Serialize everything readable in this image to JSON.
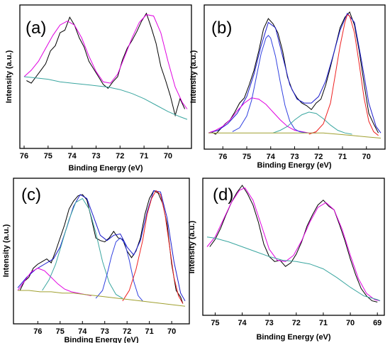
{
  "chart_data": [
    {
      "type": "line",
      "panel_label": "(a)",
      "xlabel": "Binding Energy (eV)",
      "ylabel": "Intensity (a.u.)",
      "xlim": [
        76,
        69.2
      ],
      "ylim": [
        0,
        1
      ],
      "x_reversed": true,
      "xticks": [
        76,
        75,
        74,
        73,
        72,
        71,
        70
      ],
      "grid": false,
      "series": [
        {
          "role": "raw",
          "color": "#000000",
          "x": [
            75.9,
            75.7,
            75.5,
            75.3,
            75.1,
            74.9,
            74.7,
            74.5,
            74.3,
            74.1,
            73.9,
            73.7,
            73.5,
            73.3,
            73.1,
            72.9,
            72.7,
            72.5,
            72.3,
            72.1,
            71.9,
            71.7,
            71.5,
            71.3,
            71.1,
            70.9,
            70.7,
            70.5,
            70.3,
            70.1,
            69.9,
            69.7,
            69.5,
            69.3
          ],
          "y": [
            0.47,
            0.45,
            0.5,
            0.55,
            0.6,
            0.7,
            0.74,
            0.84,
            0.86,
            0.96,
            0.9,
            0.8,
            0.73,
            0.62,
            0.56,
            0.5,
            0.44,
            0.41,
            0.46,
            0.5,
            0.63,
            0.72,
            0.78,
            0.85,
            0.93,
            0.99,
            0.88,
            0.76,
            0.58,
            0.47,
            0.35,
            0.2,
            0.33,
            0.25
          ]
        },
        {
          "role": "fit",
          "color": "#e000e0",
          "x": [
            76,
            75.7,
            75.4,
            75.1,
            74.8,
            74.5,
            74.2,
            73.9,
            73.6,
            73.3,
            73,
            72.7,
            72.4,
            72.1,
            71.8,
            71.5,
            71.2,
            70.9,
            70.6,
            70.3,
            70,
            69.7,
            69.4,
            69.2
          ],
          "y": [
            0.5,
            0.55,
            0.62,
            0.72,
            0.82,
            0.9,
            0.93,
            0.9,
            0.8,
            0.66,
            0.54,
            0.46,
            0.45,
            0.52,
            0.66,
            0.8,
            0.92,
            0.98,
            0.97,
            0.84,
            0.62,
            0.42,
            0.3,
            0.25
          ]
        },
        {
          "role": "background",
          "color": "#3aa6a0",
          "x": [
            76,
            75.5,
            75,
            74.5,
            74,
            73.5,
            73,
            72.5,
            72,
            71.5,
            71,
            70.5,
            70,
            69.5,
            69.2
          ],
          "y": [
            0.5,
            0.49,
            0.48,
            0.46,
            0.45,
            0.44,
            0.43,
            0.42,
            0.4,
            0.37,
            0.33,
            0.28,
            0.23,
            0.19,
            0.17
          ]
        }
      ]
    },
    {
      "type": "line",
      "panel_label": "(b)",
      "xlabel": "Binding Energy (eV)",
      "ylabel": "Intensity (a.u.)",
      "xlim": [
        76.6,
        69.4
      ],
      "ylim": [
        0,
        1
      ],
      "x_reversed": true,
      "xticks": [
        76,
        75,
        74,
        73,
        72,
        71,
        70
      ],
      "grid": false,
      "series": [
        {
          "role": "raw",
          "color": "#000000",
          "x": [
            76.5,
            76.3,
            76.1,
            75.9,
            75.7,
            75.5,
            75.3,
            75.1,
            74.9,
            74.7,
            74.5,
            74.3,
            74.1,
            73.9,
            73.7,
            73.5,
            73.3,
            73.1,
            72.9,
            72.7,
            72.5,
            72.3,
            72.1,
            71.9,
            71.7,
            71.5,
            71.3,
            71.1,
            70.9,
            70.7,
            70.5,
            70.3,
            70.1,
            69.9,
            69.7,
            69.5
          ],
          "y": [
            0.08,
            0.06,
            0.1,
            0.14,
            0.17,
            0.23,
            0.3,
            0.34,
            0.44,
            0.55,
            0.7,
            0.87,
            0.95,
            0.91,
            0.84,
            0.7,
            0.5,
            0.4,
            0.34,
            0.3,
            0.28,
            0.25,
            0.3,
            0.33,
            0.44,
            0.58,
            0.73,
            0.88,
            0.96,
            1.0,
            0.9,
            0.7,
            0.45,
            0.22,
            0.14,
            0.07
          ]
        },
        {
          "role": "fit-envelope",
          "color": "#1a1acc",
          "x": [
            76.6,
            76.2,
            75.8,
            75.4,
            75,
            74.7,
            74.4,
            74.1,
            73.8,
            73.5,
            73.2,
            72.9,
            72.6,
            72.3,
            72,
            71.7,
            71.4,
            71.1,
            70.8,
            70.5,
            70.2,
            69.9,
            69.6,
            69.4
          ],
          "y": [
            0.07,
            0.09,
            0.14,
            0.22,
            0.35,
            0.52,
            0.74,
            0.92,
            0.88,
            0.66,
            0.44,
            0.33,
            0.3,
            0.3,
            0.35,
            0.47,
            0.66,
            0.86,
            0.99,
            0.92,
            0.62,
            0.3,
            0.12,
            0.07
          ]
        },
        {
          "role": "component",
          "color": "#e000e0",
          "x": [
            76.6,
            76.3,
            76,
            75.7,
            75.4,
            75.1,
            74.8,
            74.5,
            74.2,
            73.9,
            73.6,
            73.3,
            73,
            72.7,
            72.4,
            72.1
          ],
          "y": [
            0.07,
            0.09,
            0.12,
            0.17,
            0.24,
            0.3,
            0.34,
            0.33,
            0.29,
            0.23,
            0.17,
            0.12,
            0.09,
            0.08,
            0.07,
            0.07
          ]
        },
        {
          "role": "component",
          "color": "#3040e0",
          "x": [
            75.6,
            75.3,
            75,
            74.8,
            74.6,
            74.4,
            74.2,
            74.1,
            74,
            73.8,
            73.6,
            73.4,
            73.2,
            73,
            72.8,
            72.5
          ],
          "y": [
            0.08,
            0.11,
            0.2,
            0.32,
            0.5,
            0.68,
            0.8,
            0.82,
            0.8,
            0.66,
            0.46,
            0.28,
            0.16,
            0.1,
            0.08,
            0.07
          ]
        },
        {
          "role": "component",
          "color": "#3aa6a0",
          "x": [
            73.9,
            73.6,
            73.3,
            73,
            72.7,
            72.4,
            72.1,
            71.8,
            71.5,
            71.2,
            70.9,
            70.6
          ],
          "y": [
            0.07,
            0.09,
            0.12,
            0.17,
            0.21,
            0.23,
            0.22,
            0.18,
            0.13,
            0.09,
            0.07,
            0.06
          ]
        },
        {
          "role": "component",
          "color": "#ee2020",
          "x": [
            72.4,
            72.1,
            71.8,
            71.5,
            71.3,
            71.1,
            70.9,
            70.8,
            70.7,
            70.5,
            70.3,
            70.1,
            69.9,
            69.7,
            69.5
          ],
          "y": [
            0.06,
            0.08,
            0.14,
            0.3,
            0.52,
            0.74,
            0.92,
            0.98,
            0.97,
            0.84,
            0.6,
            0.34,
            0.16,
            0.08,
            0.05
          ]
        },
        {
          "role": "background",
          "color": "#a0a030",
          "x": [
            76.6,
            76,
            75.4,
            74.8,
            74.2,
            73.6,
            73,
            72.4,
            71.8,
            71.2,
            70.6,
            70,
            69.4
          ],
          "y": [
            0.07,
            0.07,
            0.07,
            0.07,
            0.07,
            0.07,
            0.07,
            0.07,
            0.07,
            0.06,
            0.05,
            0.04,
            0.03
          ]
        }
      ]
    },
    {
      "type": "line",
      "panel_label": "(c)",
      "xlabel": "Binding Energy (eV)",
      "ylabel": "Intensity (a.u.)",
      "xlim": [
        76.9,
        69.4
      ],
      "ylim": [
        0,
        1
      ],
      "x_reversed": true,
      "xticks": [
        76,
        75,
        74,
        73,
        72,
        71,
        70
      ],
      "grid": false,
      "series": [
        {
          "role": "raw",
          "color": "#000000",
          "x": [
            76.8,
            76.6,
            76.4,
            76.2,
            76,
            75.8,
            75.6,
            75.4,
            75.2,
            75,
            74.8,
            74.6,
            74.4,
            74.2,
            74,
            73.8,
            73.6,
            73.4,
            73.2,
            73,
            72.8,
            72.6,
            72.4,
            72.2,
            72,
            71.8,
            71.6,
            71.4,
            71.2,
            71,
            70.8,
            70.6,
            70.4,
            70.2,
            70,
            69.8,
            69.6,
            69.5
          ],
          "y": [
            0.2,
            0.27,
            0.3,
            0.37,
            0.4,
            0.42,
            0.44,
            0.41,
            0.5,
            0.6,
            0.7,
            0.82,
            0.88,
            0.92,
            0.93,
            0.89,
            0.75,
            0.6,
            0.58,
            0.57,
            0.6,
            0.65,
            0.6,
            0.59,
            0.5,
            0.45,
            0.5,
            0.6,
            0.78,
            0.9,
            0.96,
            0.94,
            0.86,
            0.7,
            0.4,
            0.2,
            0.15,
            0.1
          ]
        },
        {
          "role": "fit-envelope",
          "color": "#1a1acc",
          "x": [
            76.9,
            76.5,
            76.1,
            75.7,
            75.3,
            75,
            74.7,
            74.4,
            74.1,
            73.8,
            73.5,
            73.2,
            72.9,
            72.6,
            72.3,
            72,
            71.7,
            71.4,
            71.1,
            70.8,
            70.5,
            70.2,
            69.9,
            69.6,
            69.4
          ],
          "y": [
            0.22,
            0.3,
            0.36,
            0.4,
            0.44,
            0.53,
            0.68,
            0.84,
            0.93,
            0.9,
            0.76,
            0.62,
            0.58,
            0.62,
            0.63,
            0.53,
            0.47,
            0.58,
            0.8,
            0.96,
            0.95,
            0.75,
            0.42,
            0.18,
            0.12
          ]
        },
        {
          "role": "component",
          "color": "#e000e0",
          "x": [
            76.9,
            76.6,
            76.3,
            76,
            75.7,
            75.4,
            75.1,
            74.8,
            74.5,
            74.2,
            73.9,
            73.6
          ],
          "y": [
            0.2,
            0.27,
            0.34,
            0.37,
            0.35,
            0.3,
            0.25,
            0.21,
            0.19,
            0.18,
            0.17,
            0.16
          ]
        },
        {
          "role": "component",
          "color": "#3aa6a0",
          "x": [
            75.8,
            75.5,
            75.2,
            74.9,
            74.6,
            74.3,
            74,
            73.7,
            73.4,
            73.1,
            72.8,
            72.5,
            72.2
          ],
          "y": [
            0.2,
            0.28,
            0.4,
            0.57,
            0.74,
            0.87,
            0.9,
            0.82,
            0.64,
            0.42,
            0.26,
            0.17,
            0.14
          ]
        },
        {
          "role": "component",
          "color": "#3040e0",
          "x": [
            73.4,
            73.1,
            72.9,
            72.7,
            72.5,
            72.3,
            72.1,
            71.9,
            71.7,
            71.5,
            71.3
          ],
          "y": [
            0.14,
            0.2,
            0.32,
            0.46,
            0.57,
            0.6,
            0.56,
            0.43,
            0.27,
            0.16,
            0.12
          ]
        },
        {
          "role": "component",
          "color": "#ee2020",
          "x": [
            72.2,
            71.9,
            71.6,
            71.3,
            71.1,
            70.9,
            70.7,
            70.5,
            70.3,
            70.1,
            69.9,
            69.7,
            69.5
          ],
          "y": [
            0.12,
            0.2,
            0.36,
            0.58,
            0.78,
            0.9,
            0.96,
            0.93,
            0.78,
            0.54,
            0.3,
            0.16,
            0.1
          ]
        },
        {
          "role": "background",
          "color": "#a0a030",
          "x": [
            76.9,
            76.4,
            75.9,
            75.4,
            74.9,
            74.4,
            73.9,
            73.4,
            72.9,
            72.4,
            71.9,
            71.4,
            70.9,
            70.4,
            69.9,
            69.4
          ],
          "y": [
            0.2,
            0.2,
            0.19,
            0.19,
            0.18,
            0.18,
            0.17,
            0.16,
            0.15,
            0.14,
            0.13,
            0.12,
            0.11,
            0.1,
            0.09,
            0.08
          ]
        }
      ]
    },
    {
      "type": "line",
      "panel_label": "(d)",
      "xlabel": "Binding Energy (eV)",
      "ylabel": "Intensity (a.u.)",
      "xlim": [
        75.3,
        68.9
      ],
      "ylim": [
        0,
        1
      ],
      "x_reversed": true,
      "xticks": [
        75,
        74,
        73,
        72,
        71,
        70,
        69
      ],
      "grid": false,
      "series": [
        {
          "role": "raw",
          "color": "#000000",
          "x": [
            75.2,
            75,
            74.8,
            74.6,
            74.4,
            74.2,
            74,
            73.8,
            73.6,
            73.4,
            73.2,
            73,
            72.8,
            72.6,
            72.4,
            72.2,
            72,
            71.8,
            71.6,
            71.4,
            71.2,
            71,
            70.8,
            70.6,
            70.4,
            70.2,
            70,
            69.8,
            69.6,
            69.4,
            69.2,
            69
          ],
          "y": [
            0.5,
            0.56,
            0.65,
            0.76,
            0.86,
            0.94,
            1.0,
            0.93,
            0.84,
            0.7,
            0.52,
            0.42,
            0.38,
            0.39,
            0.34,
            0.37,
            0.44,
            0.54,
            0.67,
            0.76,
            0.84,
            0.88,
            0.83,
            0.8,
            0.68,
            0.55,
            0.4,
            0.27,
            0.16,
            0.1,
            0.06,
            0.05
          ]
        },
        {
          "role": "fit",
          "color": "#e000e0",
          "x": [
            75.3,
            75,
            74.7,
            74.4,
            74.1,
            73.9,
            73.6,
            73.3,
            73,
            72.7,
            72.4,
            72.1,
            71.8,
            71.5,
            71.2,
            70.9,
            70.6,
            70.3,
            70,
            69.7,
            69.4,
            69.1,
            68.9
          ],
          "y": [
            0.5,
            0.58,
            0.72,
            0.86,
            0.96,
            0.98,
            0.88,
            0.68,
            0.48,
            0.39,
            0.38,
            0.43,
            0.55,
            0.7,
            0.82,
            0.86,
            0.8,
            0.64,
            0.43,
            0.24,
            0.12,
            0.07,
            0.06
          ]
        },
        {
          "role": "background",
          "color": "#3aa6a0",
          "x": [
            75.3,
            75,
            74.5,
            74,
            73.5,
            73,
            72.5,
            72,
            71.5,
            71,
            70.5,
            70,
            69.5,
            69,
            68.9
          ],
          "y": [
            0.58,
            0.57,
            0.54,
            0.5,
            0.46,
            0.42,
            0.39,
            0.38,
            0.36,
            0.32,
            0.25,
            0.17,
            0.1,
            0.07,
            0.06
          ]
        }
      ]
    }
  ]
}
